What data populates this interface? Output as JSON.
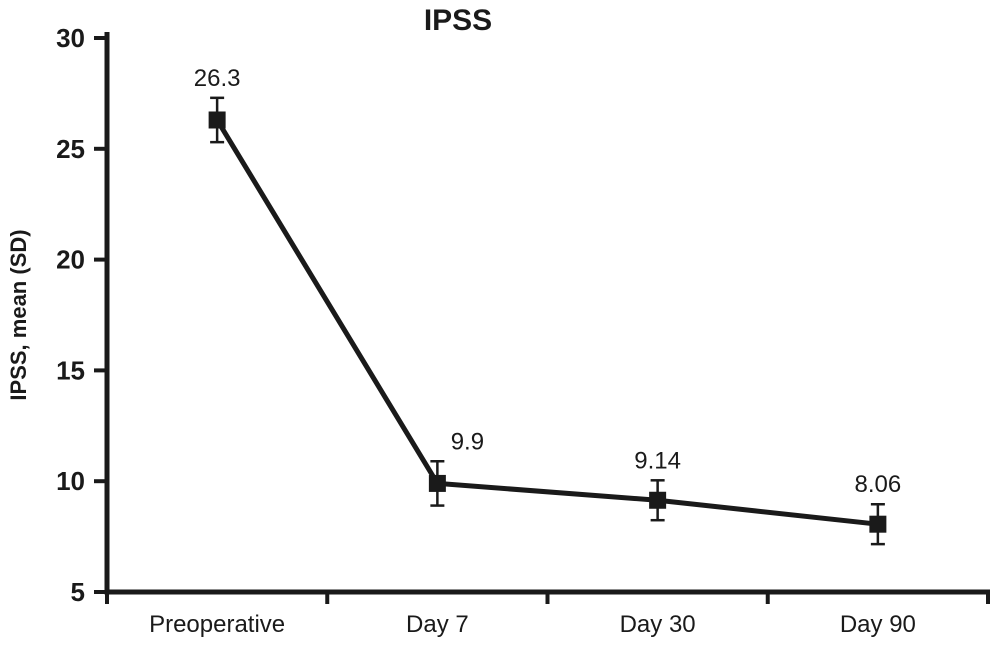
{
  "chart_data": {
    "type": "line",
    "title": "IPSS",
    "xlabel": "",
    "ylabel": "IPSS, mean (SD)",
    "categories": [
      "Preoperative",
      "Day 7",
      "Day 30",
      "Day 90"
    ],
    "series": [
      {
        "name": "IPSS",
        "values": [
          26.3,
          9.9,
          9.14,
          8.06
        ],
        "sd": [
          1.0,
          1.0,
          0.9,
          0.9
        ]
      }
    ],
    "point_labels": [
      "26.3",
      "9.9",
      "9.14",
      "8.06"
    ],
    "ylim": [
      5,
      30
    ],
    "yticks": [
      5,
      10,
      15,
      20,
      25,
      30
    ],
    "grid": false,
    "legend": "none",
    "line_color": "#1a1a1a",
    "marker": "square",
    "error_bars": true
  }
}
